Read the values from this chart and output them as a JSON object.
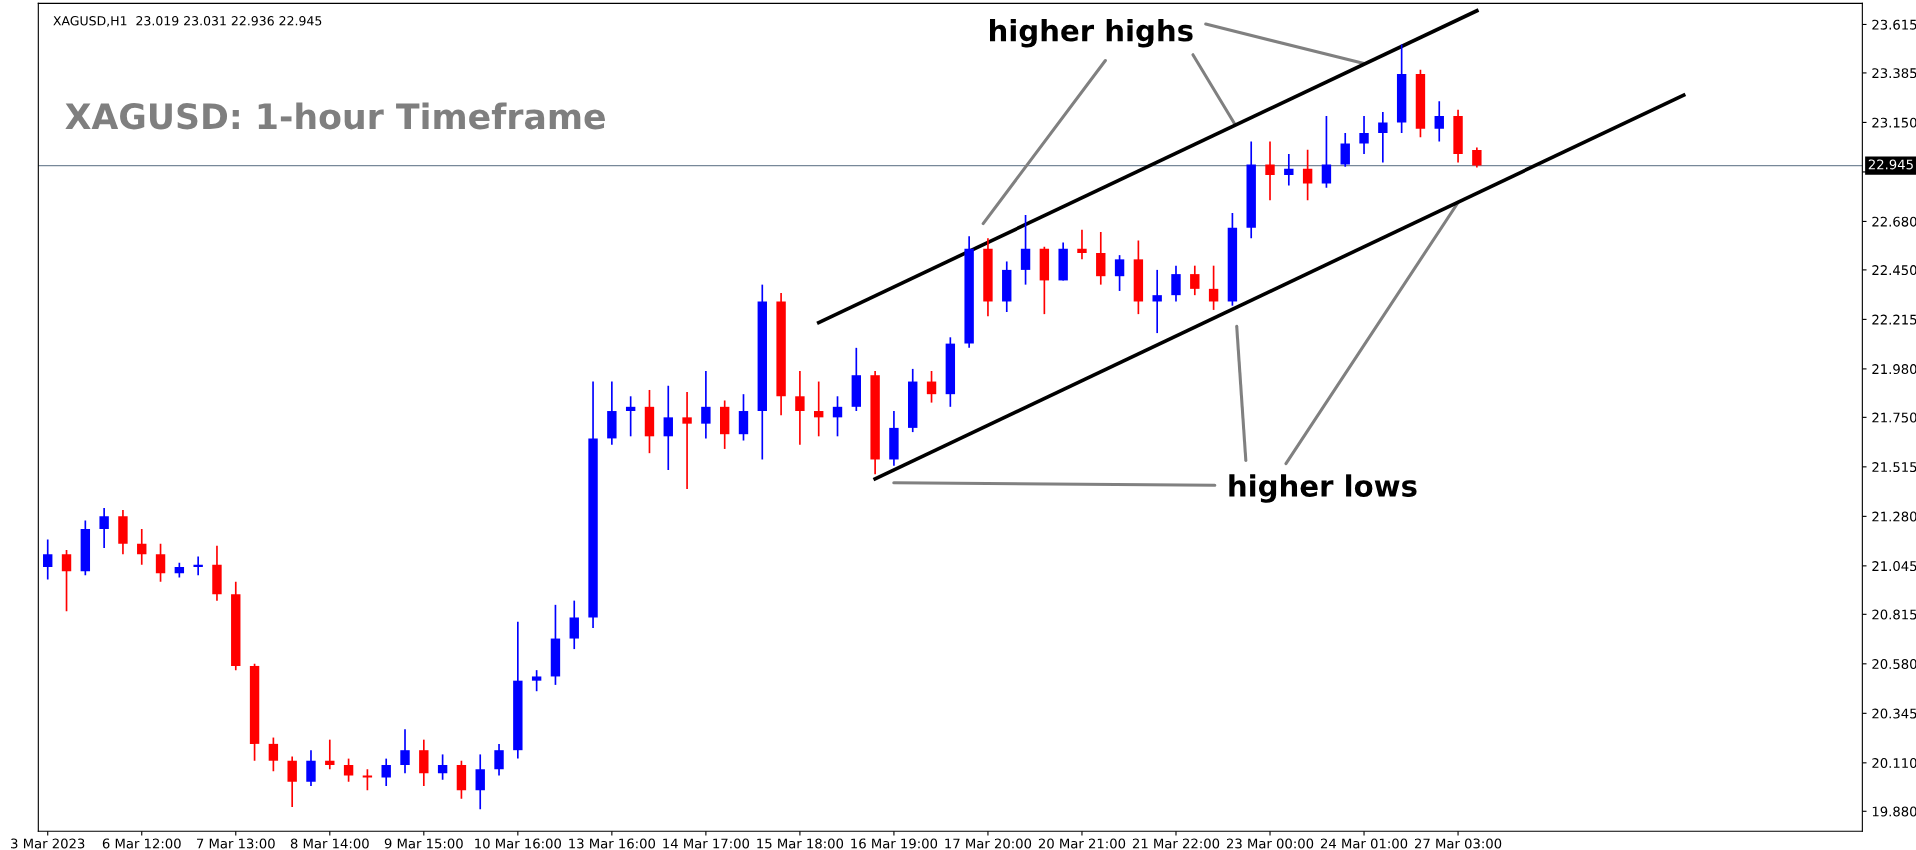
{
  "chart_data": {
    "type": "candlestick",
    "title": "XAGUSD,H1  23.019 23.031 22.936 22.945",
    "annotations": [
      "XAGUSD: 1-hour Timeframe",
      {
        "text": "higher highs",
        "x": "24 Mar 01:00",
        "y": 23.43
      },
      {
        "text": "higher lows",
        "x": "27 Mar 03:00",
        "y": 22.77
      }
    ],
    "categories": [
      "3 Mar 2023",
      null,
      null,
      null,
      null,
      "6 Mar 12:00",
      null,
      null,
      null,
      null,
      "7 Mar 13:00",
      null,
      null,
      null,
      null,
      "8 Mar 14:00",
      null,
      null,
      null,
      null,
      "9 Mar 15:00",
      null,
      null,
      null,
      null,
      "10 Mar 16:00",
      null,
      null,
      null,
      null,
      "13 Mar 16:00",
      null,
      null,
      null,
      null,
      "14 Mar 17:00",
      null,
      null,
      null,
      null,
      "15 Mar 18:00",
      null,
      null,
      null,
      null,
      "16 Mar 19:00",
      null,
      null,
      null,
      null,
      "17 Mar 20:00",
      null,
      null,
      null,
      null,
      "20 Mar 21:00",
      null,
      null,
      null,
      null,
      "21 Mar 22:00",
      null,
      null,
      null,
      null,
      "23 Mar 00:00",
      null,
      null,
      null,
      null,
      "24 Mar 01:00",
      null,
      null,
      null,
      null,
      "27 Mar 03:00",
      null,
      null,
      null,
      null,
      null,
      null,
      null,
      null,
      null,
      null,
      null,
      null,
      null,
      null,
      null,
      null,
      null,
      null,
      null,
      null,
      null
    ],
    "ohlc": [
      [
        21.04,
        21.17,
        20.98,
        21.1
      ],
      [
        21.1,
        21.12,
        20.83,
        21.02
      ],
      [
        21.02,
        21.26,
        21.0,
        21.22
      ],
      [
        21.22,
        21.32,
        21.13,
        21.28
      ],
      [
        21.28,
        21.31,
        21.1,
        21.15
      ],
      [
        21.15,
        21.22,
        21.05,
        21.1
      ],
      [
        21.1,
        21.15,
        20.97,
        21.01
      ],
      [
        21.01,
        21.06,
        20.99,
        21.04
      ],
      [
        21.04,
        21.09,
        21.0,
        21.05
      ],
      [
        21.05,
        21.14,
        20.88,
        20.91
      ],
      [
        20.91,
        20.97,
        20.55,
        20.57
      ],
      [
        20.57,
        20.58,
        20.12,
        20.2
      ],
      [
        20.2,
        20.23,
        20.07,
        20.12
      ],
      [
        20.12,
        20.14,
        19.9,
        20.02
      ],
      [
        20.02,
        20.17,
        20.0,
        20.12
      ],
      [
        20.12,
        20.22,
        20.08,
        20.1
      ],
      [
        20.1,
        20.13,
        20.02,
        20.05
      ],
      [
        20.05,
        20.08,
        19.98,
        20.04
      ],
      [
        20.04,
        20.13,
        20.0,
        20.1
      ],
      [
        20.1,
        20.27,
        20.06,
        20.17
      ],
      [
        20.17,
        20.22,
        20.0,
        20.06
      ],
      [
        20.06,
        20.15,
        20.03,
        20.1
      ],
      [
        20.1,
        20.12,
        19.94,
        19.98
      ],
      [
        19.98,
        20.15,
        19.89,
        20.08
      ],
      [
        20.08,
        20.2,
        20.05,
        20.17
      ],
      [
        20.17,
        20.78,
        20.13,
        20.5
      ],
      [
        20.5,
        20.55,
        20.45,
        20.52
      ],
      [
        20.52,
        20.86,
        20.48,
        20.7
      ],
      [
        20.7,
        20.88,
        20.65,
        20.8
      ],
      [
        20.8,
        21.92,
        20.75,
        21.65
      ],
      [
        21.65,
        21.92,
        21.62,
        21.78
      ],
      [
        21.78,
        21.85,
        21.66,
        21.8
      ],
      [
        21.8,
        21.88,
        21.58,
        21.66
      ],
      [
        21.66,
        21.9,
        21.5,
        21.75
      ],
      [
        21.75,
        21.87,
        21.41,
        21.72
      ],
      [
        21.72,
        21.97,
        21.65,
        21.8
      ],
      [
        21.8,
        21.83,
        21.6,
        21.67
      ],
      [
        21.67,
        21.86,
        21.64,
        21.78
      ],
      [
        21.78,
        22.38,
        21.55,
        22.3
      ],
      [
        22.3,
        22.34,
        21.76,
        21.85
      ],
      [
        21.85,
        21.97,
        21.62,
        21.78
      ],
      [
        21.78,
        21.92,
        21.66,
        21.75
      ],
      [
        21.75,
        21.85,
        21.66,
        21.8
      ],
      [
        21.8,
        22.08,
        21.78,
        21.95
      ],
      [
        21.95,
        21.97,
        21.48,
        21.55
      ],
      [
        21.55,
        21.78,
        21.52,
        21.7
      ],
      [
        21.7,
        21.98,
        21.68,
        21.92
      ],
      [
        21.92,
        21.97,
        21.82,
        21.86
      ],
      [
        21.86,
        22.13,
        21.8,
        22.1
      ],
      [
        22.1,
        22.61,
        22.08,
        22.55
      ],
      [
        22.55,
        22.6,
        22.23,
        22.3
      ],
      [
        22.3,
        22.49,
        22.25,
        22.45
      ],
      [
        22.45,
        22.71,
        22.38,
        22.55
      ],
      [
        22.55,
        22.56,
        22.24,
        22.4
      ],
      [
        22.4,
        22.58,
        22.4,
        22.55
      ],
      [
        22.55,
        22.64,
        22.5,
        22.53
      ],
      [
        22.53,
        22.63,
        22.38,
        22.42
      ],
      [
        22.42,
        22.52,
        22.35,
        22.5
      ],
      [
        22.5,
        22.59,
        22.24,
        22.3
      ],
      [
        22.3,
        22.45,
        22.15,
        22.33
      ],
      [
        22.33,
        22.47,
        22.3,
        22.43
      ],
      [
        22.43,
        22.47,
        22.33,
        22.36
      ],
      [
        22.36,
        22.47,
        22.26,
        22.3
      ],
      [
        22.3,
        22.72,
        22.28,
        22.65
      ],
      [
        22.65,
        23.06,
        22.6,
        22.95
      ],
      [
        22.95,
        23.06,
        22.78,
        22.9
      ],
      [
        22.9,
        23.0,
        22.85,
        22.93
      ],
      [
        22.93,
        23.02,
        22.78,
        22.86
      ],
      [
        22.86,
        23.18,
        22.84,
        22.95
      ],
      [
        22.95,
        23.1,
        22.94,
        23.05
      ],
      [
        23.05,
        23.18,
        23.0,
        23.1
      ],
      [
        23.1,
        23.2,
        22.96,
        23.15
      ],
      [
        23.15,
        23.52,
        23.1,
        23.38
      ],
      [
        23.38,
        23.4,
        23.08,
        23.12
      ],
      [
        23.12,
        23.25,
        23.06,
        23.18
      ],
      [
        23.18,
        23.21,
        22.96,
        23.0
      ],
      [
        23.019,
        23.031,
        22.936,
        22.945
      ],
      null,
      null,
      null,
      null,
      null,
      null,
      null,
      null,
      null,
      null,
      null,
      null,
      null,
      null,
      null,
      null,
      null,
      null,
      null,
      null
    ],
    "colors": [
      "#0000ff",
      "#ff0000",
      "#0000ff",
      "#0000ff",
      "#ff0000",
      "#ff0000",
      "#ff0000",
      "#0000ff",
      "#0000ff",
      "#ff0000",
      "#ff0000",
      "#ff0000",
      "#ff0000",
      "#ff0000",
      "#0000ff",
      "#ff0000",
      "#ff0000",
      "#ff0000",
      "#0000ff",
      "#0000ff",
      "#ff0000",
      "#0000ff",
      "#ff0000",
      "#0000ff",
      "#0000ff",
      "#0000ff",
      "#0000ff",
      "#0000ff",
      "#0000ff",
      "#0000ff",
      "#0000ff",
      "#0000ff",
      "#ff0000",
      "#0000ff",
      "#ff0000",
      "#0000ff",
      "#ff0000",
      "#0000ff",
      "#0000ff",
      "#ff0000",
      "#ff0000",
      "#ff0000",
      "#0000ff",
      "#0000ff",
      "#ff0000",
      "#0000ff",
      "#0000ff",
      "#ff0000",
      "#0000ff",
      "#0000ff",
      "#ff0000",
      "#0000ff",
      "#0000ff",
      "#ff0000",
      "#0000ff",
      "#ff0000",
      "#ff0000",
      "#0000ff",
      "#ff0000",
      "#0000ff",
      "#0000ff",
      "#ff0000",
      "#ff0000",
      "#0000ff",
      "#0000ff",
      "#ff0000",
      "#0000ff",
      "#ff0000",
      "#0000ff",
      "#0000ff",
      "#0000ff",
      "#0000ff",
      "#0000ff",
      "#ff0000",
      "#0000ff",
      "#ff0000",
      "#ff0000",
      null,
      null,
      null,
      null,
      null,
      null,
      null,
      null,
      null,
      null,
      null,
      null,
      null,
      null,
      null,
      null,
      null,
      null,
      null,
      null
    ],
    "series": [
      {
        "type": "line",
        "color": "#000000",
        "values": [
          null,
          null,
          null,
          null,
          null,
          null,
          null,
          null,
          null,
          null,
          null,
          null,
          null,
          null,
          null,
          null,
          null,
          null,
          null,
          null,
          null,
          null,
          null,
          null,
          null,
          null,
          null,
          null,
          null,
          null,
          null,
          null,
          null,
          null,
          null,
          null,
          null,
          null,
          null,
          null,
          null,
          22.2,
          null,
          null,
          null,
          null,
          null,
          null,
          null,
          null,
          null,
          null,
          null,
          null,
          null,
          null,
          null,
          null,
          null,
          null,
          null,
          null,
          null,
          null,
          null,
          null,
          null,
          null,
          null,
          null,
          null,
          null,
          null,
          null,
          null,
          null,
          23.68,
          null,
          null,
          null,
          null,
          null,
          null,
          null,
          null,
          null,
          null,
          null,
          null,
          null,
          null,
          null,
          null,
          null,
          null,
          null,
          null
        ]
      },
      {
        "type": "line",
        "color": "#000000",
        "values": [
          null,
          null,
          null,
          null,
          null,
          null,
          null,
          null,
          null,
          null,
          null,
          null,
          null,
          null,
          null,
          null,
          null,
          null,
          null,
          null,
          null,
          null,
          null,
          null,
          null,
          null,
          null,
          null,
          null,
          null,
          null,
          null,
          null,
          null,
          null,
          null,
          null,
          null,
          null,
          null,
          null,
          null,
          null,
          null,
          21.458,
          null,
          null,
          null,
          null,
          null,
          null,
          null,
          null,
          null,
          null,
          null,
          null,
          null,
          null,
          null,
          null,
          null,
          null,
          null,
          null,
          null,
          null,
          null,
          null,
          null,
          null,
          null,
          null,
          null,
          null,
          null,
          null,
          null,
          null,
          null,
          null,
          null,
          null,
          null,
          null,
          null,
          null,
          23.28,
          null,
          null,
          null,
          null,
          null,
          null,
          null,
          null,
          null
        ]
      }
    ],
    "ylim": [
      19.785,
      23.715
    ],
    "yticks": [
      {
        "value": 19.88,
        "label": "19.880"
      },
      {
        "value": 20.11,
        "label": "20.110"
      },
      {
        "value": 20.345,
        "label": "20.345"
      },
      {
        "value": 20.58,
        "label": "20.580"
      },
      {
        "value": 20.815,
        "label": "20.815"
      },
      {
        "value": 21.045,
        "label": "21.045"
      },
      {
        "value": 21.28,
        "label": "21.280"
      },
      {
        "value": 21.515,
        "label": "21.515"
      },
      {
        "value": 21.75,
        "label": "21.750"
      },
      {
        "value": 21.98,
        "label": "21.980"
      },
      {
        "value": 22.215,
        "label": "22.215"
      },
      {
        "value": 22.45,
        "label": "22.450"
      },
      {
        "value": 22.68,
        "label": "22.680"
      },
      {
        "value": 22.915,
        "label": null
      },
      {
        "value": 23.15,
        "label": "23.150"
      },
      {
        "value": 23.385,
        "label": "23.385"
      },
      {
        "value": 23.615,
        "label": "23.615"
      }
    ],
    "ref_lines": [
      {
        "axis": "y",
        "value": 22.945,
        "label": "22.945",
        "color": "#778899"
      }
    ],
    "grid": false,
    "legend": false
  }
}
